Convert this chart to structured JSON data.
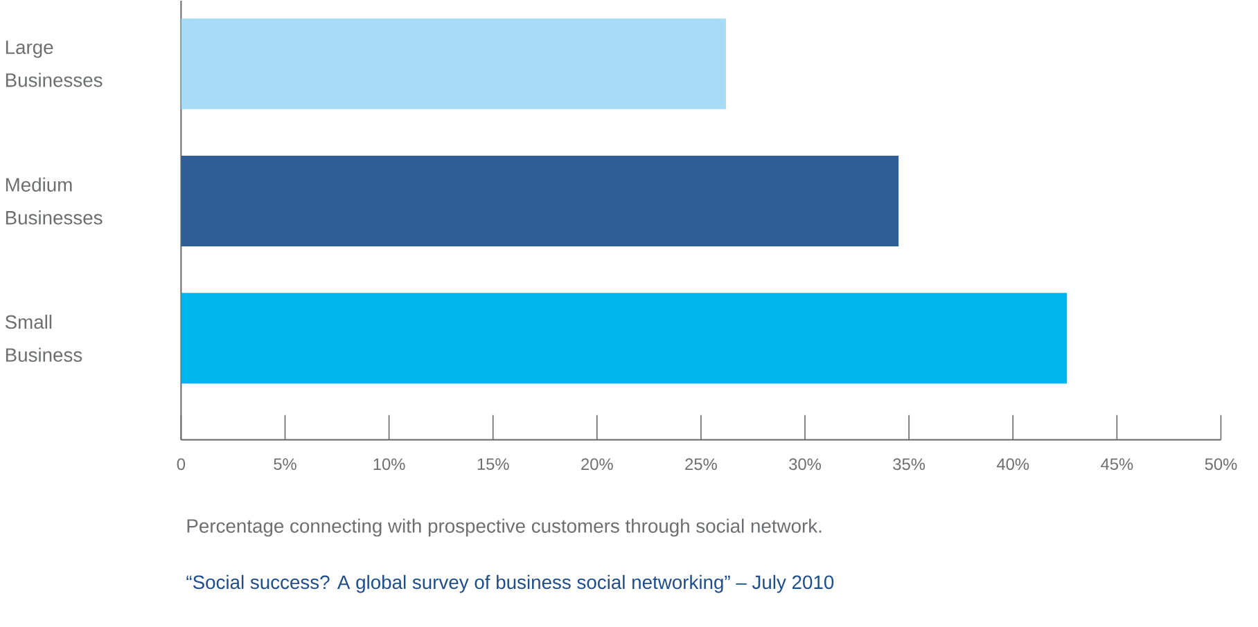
{
  "chart_data": {
    "type": "bar",
    "orientation": "horizontal",
    "categories": [
      "Large Businesses",
      "Medium Businesses",
      "Small Business"
    ],
    "values": [
      26.2,
      34.5,
      42.6
    ],
    "colors": [
      "#a8dcf6",
      "#2f5e97",
      "#00b6ee"
    ],
    "xlim": [
      0,
      50
    ],
    "xticks": [
      0,
      {
        "value": 5,
        "label": "5%"
      },
      {
        "value": 10,
        "label": "10%"
      },
      {
        "value": 15,
        "label": "15%"
      },
      {
        "value": 20,
        "label": "20%"
      },
      {
        "value": 25,
        "label": "25%"
      },
      {
        "value": 30,
        "label": "30%"
      },
      {
        "value": 35,
        "label": "35%"
      },
      {
        "value": 40,
        "label": "40%"
      },
      {
        "value": 45,
        "label": "45%"
      },
      {
        "value": 50,
        "label": "50%"
      }
    ],
    "xlabel": "Percentage connecting with prospective customers through social network.",
    "annotations": [
      "“Social success? A global survey of business social networking” – July 2010"
    ],
    "grid": false
  }
}
